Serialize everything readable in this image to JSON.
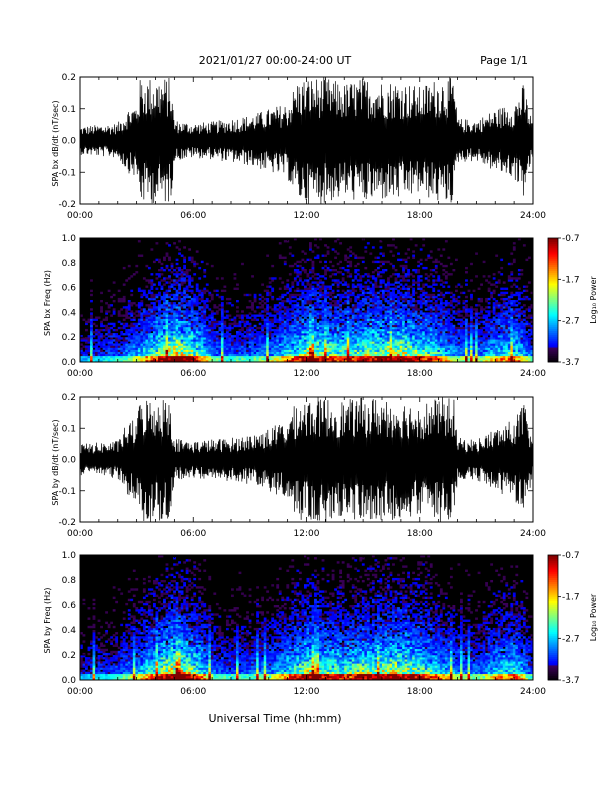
{
  "header": {
    "title": "2021/01/27  00:00-24:00 UT",
    "page_label": "Page 1/1"
  },
  "colors": {
    "background": "#ffffff",
    "trace": "#000000",
    "spectrogram_background": "#000000"
  },
  "chart_data": [
    {
      "type": "line",
      "ylabel": "SPA bx dB/dt (nT/sec)",
      "xlim": [
        0,
        24
      ],
      "ylim": [
        -0.2,
        0.2
      ],
      "yticks": [
        "-0.2",
        "-0.1",
        "0.0",
        "0.1",
        "0.2"
      ],
      "xticks": [
        "00:00",
        "06:00",
        "12:00",
        "18:00",
        "24:00"
      ],
      "envelope": {
        "x_hours": [
          0,
          1,
          2,
          2.5,
          3,
          3.2,
          4,
          4.8,
          5,
          6,
          7,
          8,
          9,
          10,
          11,
          11.5,
          12,
          13,
          14,
          15,
          16,
          17,
          18,
          19,
          19.8,
          20,
          21,
          22,
          23,
          23.5,
          24
        ],
        "amplitude": [
          0.045,
          0.05,
          0.055,
          0.1,
          0.12,
          0.2,
          0.2,
          0.2,
          0.065,
          0.055,
          0.06,
          0.07,
          0.08,
          0.1,
          0.12,
          0.19,
          0.2,
          0.2,
          0.18,
          0.2,
          0.19,
          0.19,
          0.17,
          0.2,
          0.2,
          0.07,
          0.065,
          0.1,
          0.12,
          0.18,
          0.05
        ]
      }
    },
    {
      "type": "heatmap",
      "ylabel": "SPA bx Freq (Hz)",
      "colorbar_label": "Log₁₀ Power",
      "colorbar_ticks": [
        "-0.7",
        "-1.7",
        "-2.7",
        "-3.7"
      ],
      "clim": [
        -3.7,
        -0.7
      ],
      "xlim": [
        0,
        24
      ],
      "ylim": [
        0,
        1
      ],
      "yticks": [
        "0.0",
        "0.2",
        "0.4",
        "0.6",
        "0.8",
        "1.0"
      ],
      "xticks": [
        "00:00",
        "06:00",
        "12:00",
        "18:00",
        "24:00"
      ]
    },
    {
      "type": "line",
      "ylabel": "SPA by dB/dt (nT/sec)",
      "xlim": [
        0,
        24
      ],
      "ylim": [
        -0.2,
        0.2
      ],
      "yticks": [
        "-0.2",
        "-0.1",
        "0.0",
        "0.1",
        "0.2"
      ],
      "xticks": [
        "00:00",
        "06:00",
        "12:00",
        "18:00",
        "24:00"
      ],
      "envelope": {
        "x_hours": [
          0,
          1,
          2,
          2.5,
          3,
          3.2,
          4,
          4.8,
          5,
          6,
          7,
          8,
          9,
          10,
          11,
          11.5,
          12,
          13,
          14,
          15,
          16,
          17,
          18,
          19,
          19.8,
          20,
          21,
          22,
          23,
          23.5,
          24
        ],
        "amplitude": [
          0.05,
          0.055,
          0.06,
          0.12,
          0.13,
          0.2,
          0.2,
          0.2,
          0.07,
          0.06,
          0.065,
          0.07,
          0.08,
          0.1,
          0.13,
          0.19,
          0.2,
          0.2,
          0.19,
          0.2,
          0.2,
          0.19,
          0.18,
          0.2,
          0.2,
          0.07,
          0.065,
          0.1,
          0.13,
          0.19,
          0.055
        ]
      }
    },
    {
      "type": "heatmap",
      "ylabel": "SPA by Freq (Hz)",
      "colorbar_label": "Log₁₀ Power",
      "colorbar_ticks": [
        "-0.7",
        "-1.7",
        "-2.7",
        "-3.7"
      ],
      "clim": [
        -3.7,
        -0.7
      ],
      "xlim": [
        0,
        24
      ],
      "ylim": [
        0,
        1
      ],
      "yticks": [
        "0.0",
        "0.2",
        "0.4",
        "0.6",
        "0.8",
        "1.0"
      ],
      "xticks": [
        "00:00",
        "06:00",
        "12:00",
        "18:00",
        "24:00"
      ]
    }
  ],
  "footer": {
    "xlabel": "Universal Time (hh:mm)"
  }
}
